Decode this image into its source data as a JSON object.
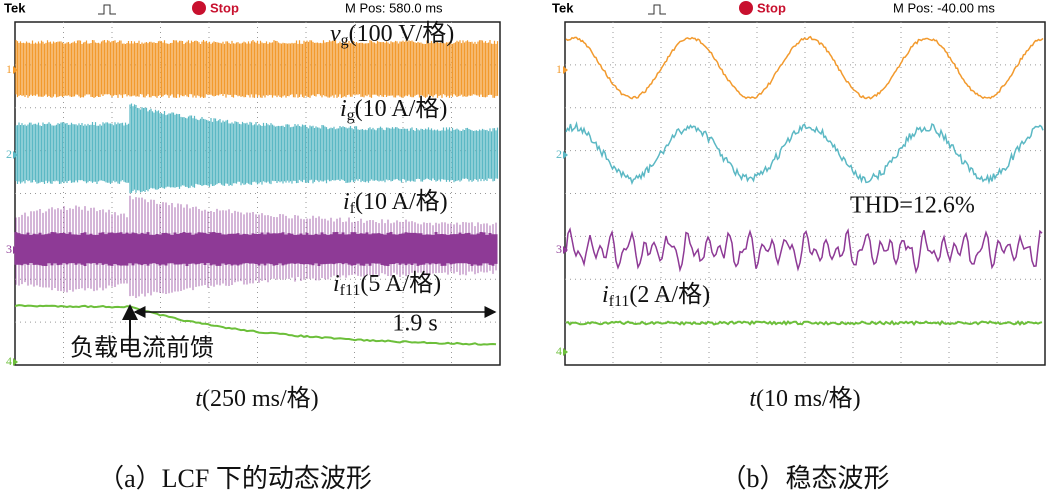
{
  "panels": [
    {
      "header": {
        "brand": "Tek",
        "status": "Stop",
        "position": "M Pos: 580.0 ms"
      },
      "channels": [
        "1",
        "2",
        "3",
        "4"
      ],
      "traces": [
        {
          "symbol": "v",
          "subscript": "g",
          "scale": "(100 V/格)"
        },
        {
          "symbol": "i",
          "subscript": "g",
          "scale": "(10 A/格)"
        },
        {
          "symbol": "i",
          "subscript": "f",
          "scale": "(10 A/格)"
        },
        {
          "symbol": "i",
          "subscript": "f11",
          "scale": "(5 A/格)"
        }
      ],
      "annotations": {
        "interval": "1.9 s",
        "event": "负载电流前馈"
      },
      "x_axis": {
        "symbol": "t",
        "scale": "(250 ms/格)"
      },
      "caption": "（a）LCF 下的动态波形"
    },
    {
      "header": {
        "brand": "Tek",
        "status": "Stop",
        "position": "M Pos: -40.00 ms"
      },
      "channels": [
        "1",
        "2",
        "3",
        "4"
      ],
      "traces": [
        {
          "symbol": "i",
          "subscript": "f11",
          "scale": "(2 A/格)"
        }
      ],
      "annotations": {
        "thd": "THD=12.6%"
      },
      "x_axis": {
        "symbol": "t",
        "scale": "(10 ms/格)"
      },
      "caption": "（b）稳态波形"
    }
  ]
}
